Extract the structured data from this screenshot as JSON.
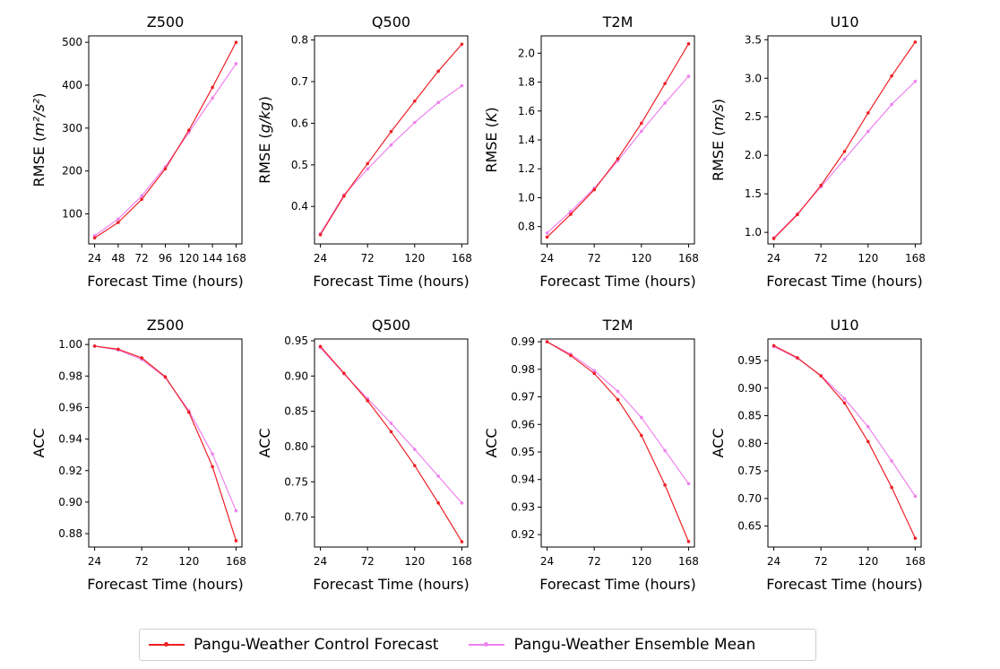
{
  "colors": {
    "control": "#ee1f25",
    "ensemble": "#ee82ee"
  },
  "legend": {
    "control_label": "Pangu-Weather Control Forecast",
    "ensemble_label": "Pangu-Weather Ensemble Mean"
  },
  "chart_data": [
    {
      "type": "line",
      "title": "Z500",
      "xlabel": "Forecast Time (hours)",
      "ylabel": "RMSE",
      "ylabel_unit": "m²/s²",
      "x": [
        24,
        48,
        72,
        96,
        120,
        144,
        168
      ],
      "xticks": [
        24,
        48,
        72,
        96,
        120,
        144,
        168
      ],
      "xlim": [
        18,
        174
      ],
      "ylim": [
        30,
        515
      ],
      "yticks": [
        100,
        200,
        300,
        400,
        500
      ],
      "ytick_labels": [
        "100",
        "200",
        "300",
        "400",
        "500"
      ],
      "series": [
        {
          "name": "Pangu-Weather Control Forecast",
          "values": [
            44,
            80,
            134,
            205,
            295,
            395,
            500
          ]
        },
        {
          "name": "Pangu-Weather Ensemble Mean",
          "values": [
            49,
            88,
            142,
            210,
            290,
            370,
            450
          ]
        }
      ]
    },
    {
      "type": "line",
      "title": "Q500",
      "xlabel": "Forecast Time (hours)",
      "ylabel": "RMSE",
      "ylabel_unit": "g/kg",
      "x": [
        24,
        48,
        72,
        96,
        120,
        144,
        168
      ],
      "xticks": [
        24,
        72,
        120,
        168
      ],
      "xlim": [
        18,
        174
      ],
      "ylim": [
        0.31,
        0.81
      ],
      "yticks": [
        0.4,
        0.5,
        0.6,
        0.7,
        0.8
      ],
      "ytick_labels": [
        "0.4",
        "0.5",
        "0.6",
        "0.7",
        "0.8"
      ],
      "series": [
        {
          "name": "Pangu-Weather Control Forecast",
          "values": [
            0.332,
            0.425,
            0.503,
            0.58,
            0.653,
            0.725,
            0.79
          ]
        },
        {
          "name": "Pangu-Weather Ensemble Mean",
          "values": [
            0.335,
            0.428,
            0.49,
            0.548,
            0.602,
            0.65,
            0.69
          ]
        }
      ]
    },
    {
      "type": "line",
      "title": "T2M",
      "xlabel": "Forecast Time (hours)",
      "ylabel": "RMSE",
      "ylabel_unit": "K",
      "x": [
        24,
        48,
        72,
        96,
        120,
        144,
        168
      ],
      "xticks": [
        24,
        72,
        120,
        168
      ],
      "xlim": [
        18,
        174
      ],
      "ylim": [
        0.68,
        2.12
      ],
      "yticks": [
        0.8,
        1.0,
        1.2,
        1.4,
        1.6,
        1.8,
        2.0
      ],
      "ytick_labels": [
        "0.8",
        "1.0",
        "1.2",
        "1.4",
        "1.6",
        "1.8",
        "2.0"
      ],
      "series": [
        {
          "name": "Pangu-Weather Control Forecast",
          "values": [
            0.727,
            0.885,
            1.055,
            1.27,
            1.515,
            1.79,
            2.065
          ]
        },
        {
          "name": "Pangu-Weather Ensemble Mean",
          "values": [
            0.755,
            0.905,
            1.065,
            1.255,
            1.46,
            1.655,
            1.84
          ]
        }
      ]
    },
    {
      "type": "line",
      "title": "U10",
      "xlabel": "Forecast Time (hours)",
      "ylabel": "RMSE",
      "ylabel_unit": "m/s",
      "x": [
        24,
        48,
        72,
        96,
        120,
        144,
        168
      ],
      "xticks": [
        24,
        72,
        120,
        168
      ],
      "xlim": [
        18,
        174
      ],
      "ylim": [
        0.85,
        3.55
      ],
      "yticks": [
        1.0,
        1.5,
        2.0,
        2.5,
        3.0,
        3.5
      ],
      "ytick_labels": [
        "1.0",
        "1.5",
        "2.0",
        "2.5",
        "3.0",
        "3.5"
      ],
      "series": [
        {
          "name": "Pangu-Weather Control Forecast",
          "values": [
            0.92,
            1.23,
            1.61,
            2.05,
            2.55,
            3.03,
            3.47
          ]
        },
        {
          "name": "Pangu-Weather Ensemble Mean",
          "values": [
            0.93,
            1.24,
            1.59,
            1.95,
            2.31,
            2.66,
            2.96
          ]
        }
      ]
    },
    {
      "type": "line",
      "title": "Z500",
      "xlabel": "Forecast Time (hours)",
      "ylabel": "ACC",
      "ylabel_unit": "",
      "x": [
        24,
        48,
        72,
        96,
        120,
        144,
        168
      ],
      "xticks": [
        24,
        72,
        120,
        168
      ],
      "xlim": [
        18,
        174
      ],
      "ylim": [
        0.8715,
        1.0035
      ],
      "yticks": [
        0.88,
        0.9,
        0.92,
        0.94,
        0.96,
        0.98,
        1.0
      ],
      "ytick_labels": [
        "0.88",
        "0.90",
        "0.92",
        "0.94",
        "0.96",
        "0.98",
        "1.00"
      ],
      "series": [
        {
          "name": "Pangu-Weather Control Forecast",
          "values": [
            0.999,
            0.997,
            0.9915,
            0.9795,
            0.957,
            0.9225,
            0.8755
          ]
        },
        {
          "name": "Pangu-Weather Ensemble Mean",
          "values": [
            0.999,
            0.9965,
            0.9905,
            0.979,
            0.958,
            0.9305,
            0.8945
          ]
        }
      ]
    },
    {
      "type": "line",
      "title": "Q500",
      "xlabel": "Forecast Time (hours)",
      "ylabel": "ACC",
      "ylabel_unit": "",
      "x": [
        24,
        48,
        72,
        96,
        120,
        144,
        168
      ],
      "xticks": [
        24,
        72,
        120,
        168
      ],
      "xlim": [
        18,
        174
      ],
      "ylim": [
        0.6575,
        0.9525
      ],
      "yticks": [
        0.7,
        0.75,
        0.8,
        0.85,
        0.9,
        0.95
      ],
      "ytick_labels": [
        "0.70",
        "0.75",
        "0.80",
        "0.85",
        "0.90",
        "0.95"
      ],
      "series": [
        {
          "name": "Pangu-Weather Control Forecast",
          "values": [
            0.942,
            0.904,
            0.865,
            0.821,
            0.773,
            0.72,
            0.665
          ]
        },
        {
          "name": "Pangu-Weather Ensemble Mean",
          "values": [
            0.94,
            0.903,
            0.868,
            0.833,
            0.796,
            0.758,
            0.72
          ]
        }
      ]
    },
    {
      "type": "line",
      "title": "T2M",
      "xlabel": "Forecast Time (hours)",
      "ylabel": "ACC",
      "ylabel_unit": "",
      "x": [
        24,
        48,
        72,
        96,
        120,
        144,
        168
      ],
      "xticks": [
        24,
        72,
        120,
        168
      ],
      "xlim": [
        18,
        174
      ],
      "ylim": [
        0.9155,
        0.991
      ],
      "yticks": [
        0.92,
        0.93,
        0.94,
        0.95,
        0.96,
        0.97,
        0.98,
        0.99
      ],
      "ytick_labels": [
        "0.92",
        "0.93",
        "0.94",
        "0.95",
        "0.96",
        "0.97",
        "0.98",
        "0.99"
      ],
      "series": [
        {
          "name": "Pangu-Weather Control Forecast",
          "values": [
            0.99,
            0.985,
            0.9785,
            0.969,
            0.956,
            0.938,
            0.9175
          ]
        },
        {
          "name": "Pangu-Weather Ensemble Mean",
          "values": [
            0.99,
            0.9855,
            0.9795,
            0.972,
            0.9625,
            0.9505,
            0.9385
          ]
        }
      ]
    },
    {
      "type": "line",
      "title": "U10",
      "xlabel": "Forecast Time (hours)",
      "ylabel": "ACC",
      "ylabel_unit": "",
      "x": [
        24,
        48,
        72,
        96,
        120,
        144,
        168
      ],
      "xticks": [
        24,
        72,
        120,
        168
      ],
      "xlim": [
        18,
        174
      ],
      "ylim": [
        0.612,
        0.989
      ],
      "yticks": [
        0.65,
        0.7,
        0.75,
        0.8,
        0.85,
        0.9,
        0.95
      ],
      "ytick_labels": [
        "0.65",
        "0.70",
        "0.75",
        "0.80",
        "0.85",
        "0.90",
        "0.95"
      ],
      "series": [
        {
          "name": "Pangu-Weather Control Forecast",
          "values": [
            0.977,
            0.955,
            0.922,
            0.873,
            0.803,
            0.72,
            0.628
          ]
        },
        {
          "name": "Pangu-Weather Ensemble Mean",
          "values": [
            0.975,
            0.954,
            0.923,
            0.881,
            0.83,
            0.768,
            0.704
          ]
        }
      ]
    }
  ]
}
